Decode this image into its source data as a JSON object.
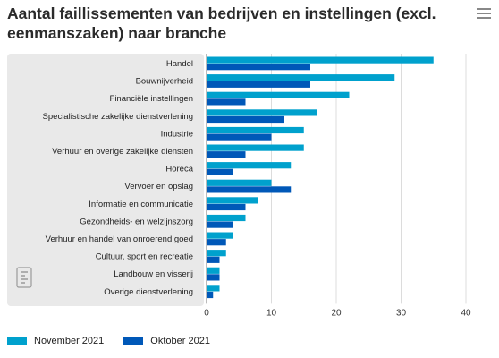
{
  "title": "Aantal faillissementen van bedrijven en instellingen (excl. eenmanszaken) naar branche",
  "menu_icon": "hamburger-menu-icon",
  "logo_icon": "cbs-logo-icon",
  "legend": [
    {
      "label": "November 2021",
      "color": "#00a1cd"
    },
    {
      "label": "Oktober 2021",
      "color": "#0058b8"
    }
  ],
  "chart_data": {
    "type": "bar",
    "orientation": "horizontal",
    "title": "Aantal faillissementen van bedrijven en instellingen (excl. eenmanszaken) naar branche",
    "categories": [
      "Handel",
      "Bouwnijverheid",
      "Financiële instellingen",
      "Specialistische zakelijke dienstverlening",
      "Industrie",
      "Verhuur en overige zakelijke diensten",
      "Horeca",
      "Vervoer en opslag",
      "Informatie en communicatie",
      "Gezondheids- en welzijnszorg",
      "Verhuur en handel van onroerend goed",
      "Cultuur, sport en recreatie",
      "Landbouw en visserij",
      "Overige dienstverlening"
    ],
    "series": [
      {
        "name": "November 2021",
        "color": "#00a1cd",
        "values": [
          35,
          29,
          22,
          17,
          15,
          15,
          13,
          10,
          8,
          6,
          4,
          3,
          2,
          2
        ]
      },
      {
        "name": "Oktober 2021",
        "color": "#0058b8",
        "values": [
          16,
          16,
          6,
          12,
          10,
          6,
          4,
          13,
          6,
          4,
          3,
          2,
          2,
          1
        ]
      }
    ],
    "xlim": [
      0,
      40
    ],
    "xticks": [
      0,
      10,
      20,
      30,
      40
    ],
    "grid": true,
    "legend_position": "bottom-left"
  }
}
